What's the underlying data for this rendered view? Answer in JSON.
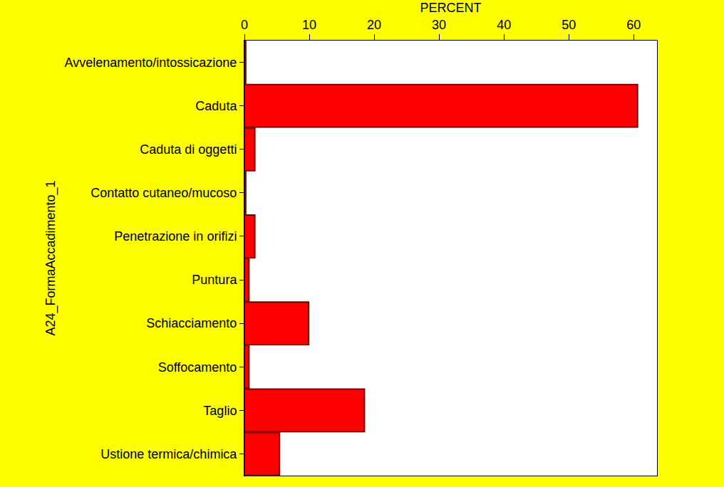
{
  "chart_data": {
    "type": "bar",
    "orientation": "horizontal",
    "xlabel": "PERCENT",
    "ylabel": "A24_FormaAccadimento_1",
    "categories": [
      "Avvelenamento/intossicazione",
      "Caduta",
      "Caduta di oggetti",
      "Contatto cutaneo/mucoso",
      "Penetrazione in orifizi",
      "Puntura",
      "Schiacciamento",
      "Soffocamento",
      "Taglio",
      "Ustione termica/chimica"
    ],
    "values": [
      0.2,
      60.6,
      1.6,
      0.2,
      1.6,
      0.7,
      9.9,
      0.7,
      18.5,
      5.4
    ],
    "color": "#ff0000",
    "xlim": [
      0,
      63.6
    ],
    "xticks": [
      0,
      10,
      20,
      30,
      40,
      50,
      60
    ],
    "grid": false
  }
}
